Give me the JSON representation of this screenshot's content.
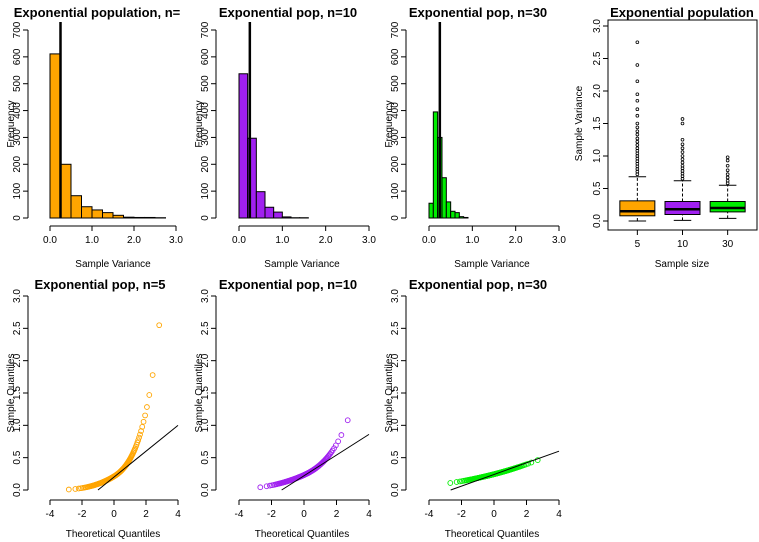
{
  "colors": {
    "n5": "#FFA500",
    "n10": "#A020F0",
    "n30": "#00EE00",
    "ink": "#000000"
  },
  "chart_data": [
    {
      "type": "bar",
      "title": "Exponential population, n=",
      "xlabel": "Sample Variance",
      "ylabel": "Frequency",
      "xlim": [
        0,
        3
      ],
      "ylim": [
        0,
        700
      ],
      "xticks": [
        "0.0",
        "1.0",
        "2.0",
        "3.0"
      ],
      "yticks": [
        "0",
        "100",
        "200",
        "300",
        "400",
        "500",
        "600",
        "700"
      ],
      "bin_width": 0.25,
      "bins_start": [
        0,
        0.25,
        0.5,
        0.75,
        1.0,
        1.25,
        1.5,
        1.75,
        2.0,
        2.25,
        2.5
      ],
      "values": [
        611,
        200,
        83,
        42,
        30,
        20,
        10,
        3,
        2,
        2,
        1
      ],
      "color_key": "n5",
      "vline": 0.25
    },
    {
      "type": "bar",
      "title": "Exponential pop, n=10",
      "xlabel": "Sample Variance",
      "ylabel": "Frequency",
      "xlim": [
        0,
        3
      ],
      "ylim": [
        0,
        700
      ],
      "xticks": [
        "0.0",
        "1.0",
        "2.0",
        "3.0"
      ],
      "yticks": [
        "0",
        "100",
        "200",
        "300",
        "400",
        "500",
        "600",
        "700"
      ],
      "bin_width": 0.2,
      "bins_start": [
        0,
        0.2,
        0.4,
        0.6,
        0.8,
        1.0,
        1.2,
        1.4
      ],
      "values": [
        537,
        297,
        98,
        40,
        22,
        4,
        1,
        1
      ],
      "color_key": "n10",
      "vline": 0.25
    },
    {
      "type": "bar",
      "title": "Exponential pop, n=30",
      "xlabel": "Sample Variance",
      "ylabel": "Frequency",
      "xlim": [
        0,
        3
      ],
      "ylim": [
        0,
        700
      ],
      "xticks": [
        "0.0",
        "1.0",
        "2.0",
        "3.0"
      ],
      "yticks": [
        "0",
        "100",
        "200",
        "300",
        "400",
        "500",
        "600",
        "700"
      ],
      "bin_width": 0.1,
      "bins_start": [
        0,
        0.1,
        0.2,
        0.3,
        0.4,
        0.5,
        0.6,
        0.7,
        0.8
      ],
      "values": [
        55,
        395,
        300,
        150,
        60,
        25,
        20,
        5,
        2
      ],
      "color_key": "n30",
      "vline": 0.25
    },
    {
      "type": "box",
      "title": "Exponential population",
      "xlabel": "Sample size",
      "ylabel": "Sample Variance",
      "ylim": [
        0,
        3
      ],
      "yticks": [
        "0.0",
        "0.5",
        "1.0",
        "1.5",
        "2.0",
        "2.5",
        "3.0"
      ],
      "categories": [
        "5",
        "10",
        "30"
      ],
      "boxes": [
        {
          "q1": 0.08,
          "median": 0.15,
          "q3": 0.31,
          "whisker_low": 0.0,
          "whisker_high": 0.68,
          "color_key": "n5",
          "outliers": [
            0.72,
            0.76,
            0.8,
            0.84,
            0.88,
            0.92,
            0.96,
            1.0,
            1.04,
            1.08,
            1.12,
            1.17,
            1.22,
            1.27,
            1.33,
            1.38,
            1.44,
            1.5,
            1.62,
            1.72,
            1.85,
            1.95,
            2.15,
            2.4,
            2.75
          ]
        },
        {
          "q1": 0.1,
          "median": 0.18,
          "q3": 0.3,
          "whisker_low": 0.01,
          "whisker_high": 0.62,
          "color_key": "n10",
          "outliers": [
            0.65,
            0.69,
            0.73,
            0.77,
            0.81,
            0.85,
            0.9,
            0.95,
            1.0,
            1.06,
            1.12,
            1.18,
            1.25,
            1.5,
            1.57
          ]
        },
        {
          "q1": 0.14,
          "median": 0.2,
          "q3": 0.3,
          "whisker_low": 0.04,
          "whisker_high": 0.55,
          "color_key": "n30",
          "outliers": [
            0.58,
            0.62,
            0.67,
            0.72,
            0.78,
            0.85,
            0.93,
            0.98
          ]
        }
      ]
    },
    {
      "type": "scatter",
      "title": "Exponential pop, n=5",
      "xlabel": "Theoretical Quantiles",
      "ylabel": "Sample Quantiles",
      "xlim": [
        -4,
        4
      ],
      "ylim": [
        0,
        3
      ],
      "xticks": [
        "-4",
        "-2",
        "0",
        "2",
        "4"
      ],
      "yticks": [
        "0.0",
        "0.5",
        "1.0",
        "1.5",
        "2.0",
        "2.5",
        "3.0"
      ],
      "color_key": "n5",
      "qq": {
        "scale": 0.25,
        "rate": 4,
        "sd": 1.05,
        "x_max": 3.3,
        "x_min": -3.3
      },
      "line": {
        "intercept": 0.2,
        "slope": 0.2
      }
    },
    {
      "type": "scatter",
      "title": "Exponential pop, n=10",
      "xlabel": "Theoretical Quantiles",
      "ylabel": "Sample Quantiles",
      "xlim": [
        -4,
        4
      ],
      "ylim": [
        0,
        3
      ],
      "xticks": [
        "-4",
        "-2",
        "0",
        "2",
        "4"
      ],
      "yticks": [
        "0.0",
        "0.5",
        "1.0",
        "1.5",
        "2.0",
        "2.5",
        "3.0"
      ],
      "color_key": "n10",
      "qq": {
        "scale": 0.25,
        "rate": 9,
        "sd": 1.0,
        "x_max": 3.3,
        "x_min": -3.3
      },
      "line": {
        "intercept": 0.22,
        "slope": 0.16
      }
    },
    {
      "type": "scatter",
      "title": "Exponential pop, n=30",
      "xlabel": "Theoretical Quantiles",
      "ylabel": "Sample Quantiles",
      "xlim": [
        -4,
        4
      ],
      "ylim": [
        0,
        3
      ],
      "xticks": [
        "-4",
        "-2",
        "0",
        "2",
        "4"
      ],
      "yticks": [
        "0.0",
        "0.5",
        "1.0",
        "1.5",
        "2.0",
        "2.5",
        "3.0"
      ],
      "color_key": "n30",
      "qq": {
        "scale": 0.25,
        "rate": 29,
        "sd": 1.0,
        "x_max": 3.3,
        "x_min": -3.3
      },
      "line": {
        "intercept": 0.24,
        "slope": 0.09
      }
    }
  ]
}
